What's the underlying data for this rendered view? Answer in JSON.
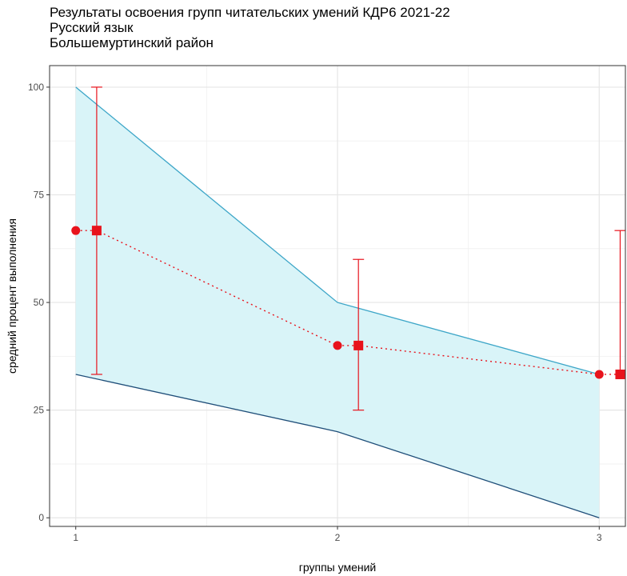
{
  "title_lines": [
    "Результаты освоения групп читательских умений КДР6 2021-22",
    "Русский язык",
    "Большемуртинский район"
  ],
  "chart_data": {
    "type": "line",
    "title": "Результаты освоения групп читательских умений КДР6 2021-22",
    "subtitle": [
      "Русский язык",
      "Большемуртинский район"
    ],
    "xlabel": "группы умений",
    "ylabel": "средний процент выполнения",
    "x_ticks": [
      "1",
      "2",
      "3"
    ],
    "y_ticks": [
      0,
      25,
      50,
      75,
      100
    ],
    "xlim": [
      0.9,
      3.1
    ],
    "ylim": [
      -2,
      105
    ],
    "grid": true,
    "band": {
      "x": [
        1,
        2,
        3
      ],
      "upper": [
        100,
        50,
        33.3
      ],
      "lower": [
        33.3,
        20,
        0
      ],
      "fill": "#d9f4f8",
      "upper_color": "#3da6c8",
      "lower_color": "#1f4e79"
    },
    "series": [
      {
        "marker": "circle",
        "x": [
          1,
          2,
          3
        ],
        "values": [
          66.7,
          40,
          33.3
        ],
        "color": "#e8131c"
      },
      {
        "marker": "square",
        "x": [
          1.08,
          2.08,
          3.08
        ],
        "values": [
          66.7,
          40,
          33.3
        ],
        "error_low": [
          33.3,
          25,
          33.3
        ],
        "error_high": [
          100,
          60,
          66.7
        ],
        "color": "#e8131c"
      }
    ],
    "connector": {
      "style": "dotted",
      "color": "#e8131c"
    }
  }
}
